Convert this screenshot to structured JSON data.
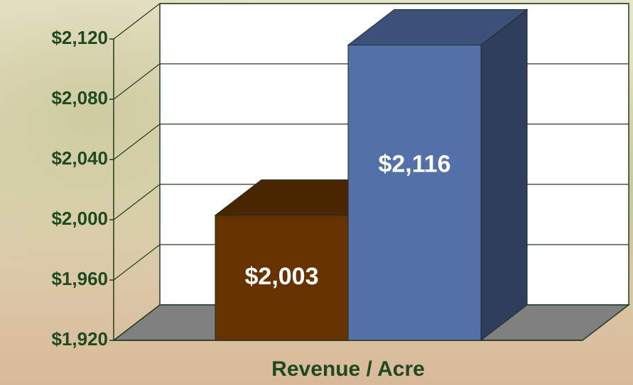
{
  "chart_data": {
    "type": "bar3d",
    "categories": [
      "Revenue / Acre"
    ],
    "series": [
      {
        "color": "#663300",
        "values": [
          2003
        ],
        "value_labels": [
          "$2,003"
        ]
      },
      {
        "color": "#5470a8",
        "values": [
          2116
        ],
        "value_labels": [
          "$2,116"
        ]
      }
    ],
    "ylim": [
      1920,
      2120
    ],
    "yticks": [
      {
        "value": 1920,
        "label": "$1,920"
      },
      {
        "value": 1960,
        "label": "$1,960"
      },
      {
        "value": 2000,
        "label": "$2,000"
      },
      {
        "value": 2040,
        "label": "$2,040"
      },
      {
        "value": 2080,
        "label": "$2,080"
      },
      {
        "value": 2120,
        "label": "$2,120"
      }
    ],
    "grid": true
  }
}
